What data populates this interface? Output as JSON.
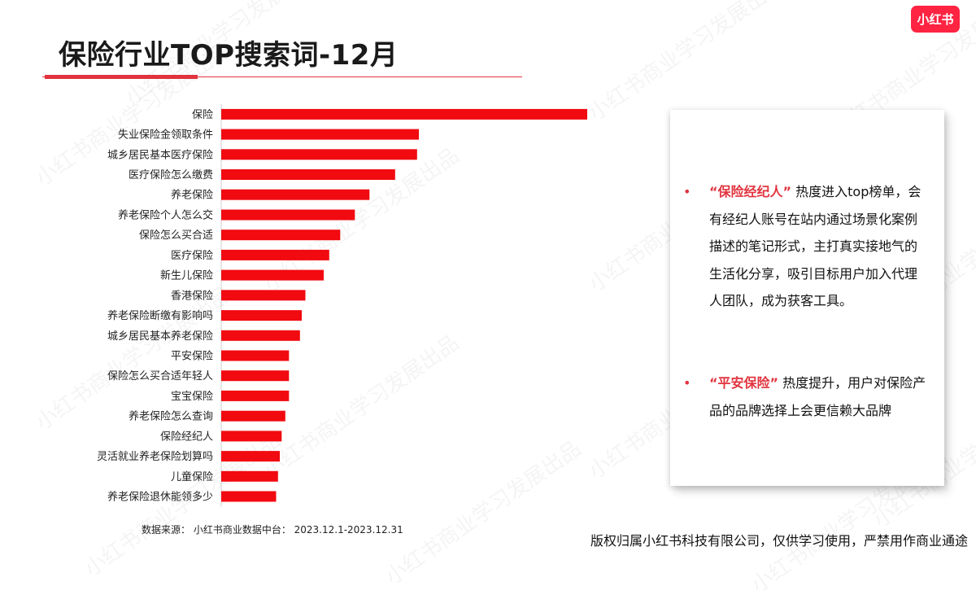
{
  "title": "保险行业TOP搜索词-12月",
  "logo_text": "小红书",
  "watermark_text": "小红书商业学习发展出品",
  "chart_data": {
    "type": "bar",
    "orientation": "horizontal",
    "categories": [
      "保险",
      "失业保险金领取条件",
      "城乡居民基本医疗保险",
      "医疗保险怎么缴费",
      "养老保险",
      "养老保险个人怎么交",
      "保险怎么买合适",
      "医疗保险",
      "新生儿保险",
      "香港保险",
      "养老保险断缴有影响吗",
      "城乡居民基本养老保险",
      "平安保险",
      "保险怎么买合适年轻人",
      "宝宝保险",
      "养老保险怎么查询",
      "保险经纪人",
      "灵活就业养老保险划算吗",
      "儿童保险",
      "养老保险退休能领多少"
    ],
    "values": [
      100,
      54,
      53.5,
      47.5,
      40.5,
      36.5,
      32.5,
      29.5,
      28,
      23,
      22,
      21.5,
      18.5,
      18.5,
      18.5,
      17.5,
      16.5,
      16,
      15.5,
      15
    ],
    "xlim": [
      0,
      100
    ],
    "bar_color": "#f10a10",
    "grid": false,
    "legend": "none"
  },
  "source_text": "数据来源：  小红书商业数据中台：  2023.12.1-2023.12.31",
  "copyright_text": "版权归属小红书科技有限公司，仅供学习使用，严禁用作商业通途",
  "insights": [
    {
      "highlight": "“保险经纪人”",
      "text": " 热度进入top榜单，会有经纪人账号在站内通过场景化案例描述的笔记形式，主打真实接地气的生活化分享，吸引目标用户加入代理人团队，成为获客工具。"
    },
    {
      "highlight": "“平安保险”",
      "text": " 热度提升，用户对保险产品的品牌选择上会更信赖大品牌"
    }
  ],
  "colors": {
    "accent": "#e1333e",
    "brand": "#ff2442"
  }
}
